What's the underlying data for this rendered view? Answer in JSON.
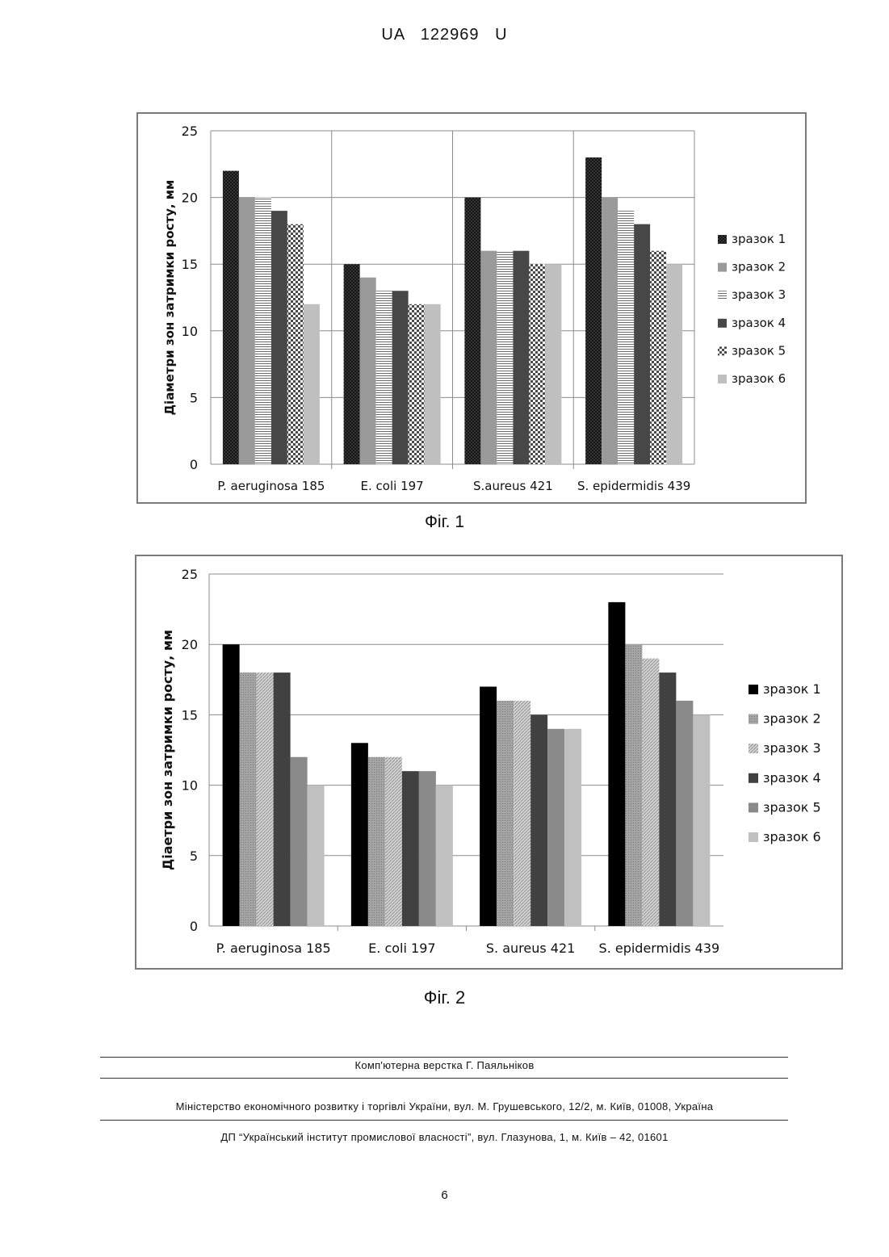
{
  "header": {
    "text": "UA   122969   U"
  },
  "chart_data": [
    {
      "type": "bar",
      "title": "",
      "xlabel": "",
      "ylabel": "Діаметри  зон затримки росту, мм",
      "ylim": [
        0,
        25
      ],
      "yticks": [
        0,
        5,
        10,
        15,
        20,
        25
      ],
      "grid": true,
      "legend_position": "right",
      "categories": [
        "P. aeruginosa 185",
        "E. coli 197",
        "S.aureus 421",
        "S. epidermidis 439"
      ],
      "series": [
        {
          "name": "зразок 1",
          "values": [
            22,
            15,
            20,
            23
          ],
          "color": "#141414",
          "pattern": "dots"
        },
        {
          "name": "зразок 2",
          "values": [
            20,
            14,
            16,
            20
          ],
          "color": "#9a9a9a",
          "pattern": "solid"
        },
        {
          "name": "зразок 3",
          "values": [
            20,
            13,
            16,
            19
          ],
          "color": "#ffffff",
          "pattern": "hlines"
        },
        {
          "name": "зразок 4",
          "values": [
            19,
            13,
            16,
            18
          ],
          "color": "#474747",
          "pattern": "solid"
        },
        {
          "name": "зразок 5",
          "values": [
            18,
            12,
            15,
            16
          ],
          "color": "#ffffff",
          "pattern": "checker"
        },
        {
          "name": "зразок 6",
          "values": [
            12,
            12,
            15,
            15
          ],
          "color": "#bfbfbf",
          "pattern": "solid"
        }
      ]
    },
    {
      "type": "bar",
      "title": "",
      "xlabel": "",
      "ylabel": "Діаетри зон затримки росту, мм",
      "ylim": [
        0,
        25
      ],
      "yticks": [
        0,
        5,
        10,
        15,
        20,
        25
      ],
      "grid": true,
      "legend_position": "right",
      "categories": [
        "P. aeruginosa 185",
        "E. coli 197",
        "S. aureus 421",
        "S. epidermidis 439"
      ],
      "series": [
        {
          "name": "зразок 1",
          "values": [
            20,
            13,
            17,
            23
          ],
          "color": "#000000",
          "pattern": "solid"
        },
        {
          "name": "зразок  2",
          "values": [
            18,
            12,
            16,
            20
          ],
          "color": "#9c9c9c",
          "pattern": "fine"
        },
        {
          "name": "зразок 3",
          "values": [
            18,
            12,
            16,
            19
          ],
          "color": "#c8c8c8",
          "pattern": "diag"
        },
        {
          "name": "зразок 4",
          "values": [
            18,
            11,
            15,
            18
          ],
          "color": "#414141",
          "pattern": "solid"
        },
        {
          "name": "зразок 5",
          "values": [
            12,
            11,
            14,
            16
          ],
          "color": "#8a8a8a",
          "pattern": "solid"
        },
        {
          "name": "зразок 6",
          "values": [
            10,
            10,
            14,
            15
          ],
          "color": "#c0c0c0",
          "pattern": "solid"
        }
      ]
    }
  ],
  "figures": [
    "Фіг. 1",
    "Фіг. 2"
  ],
  "footer": {
    "layout": "Комп'ютерна верстка Г. Паяльніков",
    "ministry": "Міністерство економічного розвитку і торгівлі України, вул. М. Грушевського, 12/2, м. Київ, 01008, Україна",
    "institute": "ДП “Український інститут промислової власності”, вул. Глазунова, 1, м. Київ – 42, 01601"
  },
  "page_number": "6"
}
